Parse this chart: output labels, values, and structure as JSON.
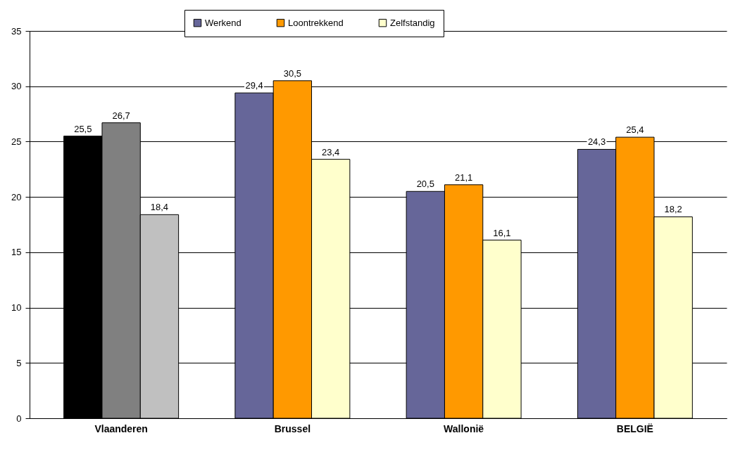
{
  "chart_data": {
    "type": "bar",
    "categories": [
      "Vlaanderen",
      "Brussel",
      "Wallonië",
      "BELGIË"
    ],
    "series": [
      {
        "name": "Werkend",
        "color": "#666699",
        "colors": [
          "#000000",
          "#666699",
          "#666699",
          "#666699"
        ],
        "values": [
          25.5,
          29.4,
          20.5,
          24.3
        ],
        "value_labels": [
          "25,5",
          "29,4",
          "20,5",
          "24,3"
        ]
      },
      {
        "name": "Loontrekkend",
        "color": "#ff9900",
        "colors": [
          "#808080",
          "#ff9900",
          "#ff9900",
          "#ff9900"
        ],
        "values": [
          26.7,
          30.5,
          21.1,
          25.4
        ],
        "value_labels": [
          "26,7",
          "30,5",
          "21,1",
          "25,4"
        ]
      },
      {
        "name": "Zelfstandig",
        "color": "#ffffcc",
        "colors": [
          "#c0c0c0",
          "#ffffcc",
          "#ffffcc",
          "#ffffcc"
        ],
        "values": [
          18.4,
          23.4,
          16.1,
          18.2
        ],
        "value_labels": [
          "18,4",
          "23,4",
          "16,1",
          "18,2"
        ]
      }
    ],
    "ylim": [
      0,
      35
    ],
    "yticks": [
      0,
      5,
      10,
      15,
      20,
      25,
      30,
      35
    ],
    "grid": "y",
    "legend": "top"
  }
}
